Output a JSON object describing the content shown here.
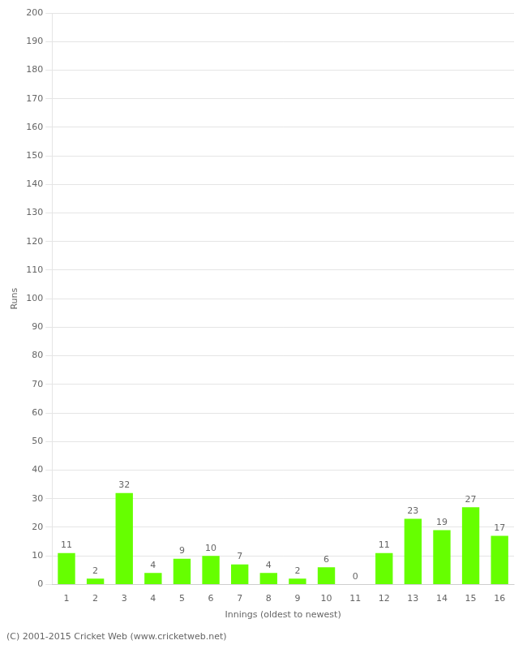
{
  "chart_data": {
    "type": "bar",
    "xlabel": "Innings (oldest to newest)",
    "ylabel": "Runs",
    "categories": [
      1,
      2,
      3,
      4,
      5,
      6,
      7,
      8,
      9,
      10,
      11,
      12,
      13,
      14,
      15,
      16
    ],
    "values": [
      11,
      2,
      32,
      4,
      9,
      10,
      7,
      4,
      2,
      6,
      0,
      11,
      23,
      19,
      27,
      17
    ],
    "color": "#66ff00",
    "ylim": [
      0,
      200
    ],
    "yticks": [
      0,
      10,
      20,
      30,
      40,
      50,
      60,
      70,
      80,
      90,
      100,
      110,
      120,
      130,
      140,
      150,
      160,
      170,
      180,
      190,
      200
    ],
    "grid": true,
    "data_labels": true,
    "footer": "(C) 2001-2015 Cricket Web (www.cricketweb.net)"
  }
}
